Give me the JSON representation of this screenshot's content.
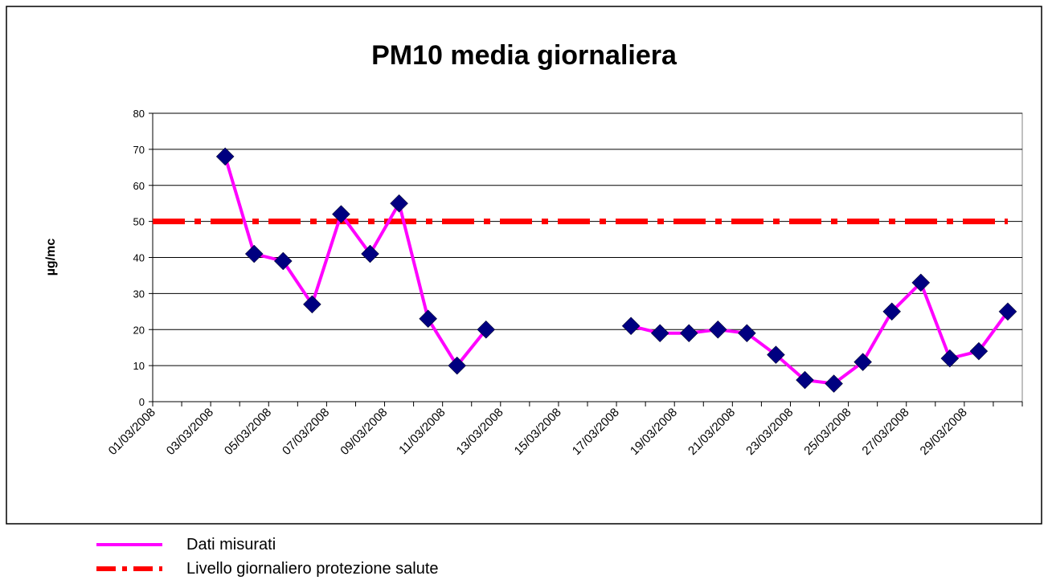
{
  "chart_data": {
    "type": "line",
    "title": "PM10 media giornaliera",
    "y_label": "µg/mc",
    "categories": [
      "01/03/2008",
      null,
      "03/03/2008",
      null,
      "05/03/2008",
      null,
      "07/03/2008",
      null,
      "09/03/2008",
      null,
      "11/03/2008",
      null,
      "13/03/2008",
      null,
      "15/03/2008",
      null,
      "17/03/2008",
      null,
      "19/03/2008",
      null,
      "21/03/2008",
      null,
      "23/03/2008",
      null,
      "25/03/2008",
      null,
      "27/03/2008",
      null,
      "29/03/2008",
      null
    ],
    "series": [
      {
        "name": "Dati misurati",
        "color": "#ff00ff",
        "marker_color": "#000080",
        "values": [
          null,
          null,
          68,
          41,
          39,
          27,
          52,
          41,
          55,
          23,
          10,
          20,
          null,
          null,
          null,
          null,
          21,
          19,
          19,
          20,
          19,
          13,
          6,
          5,
          11,
          25,
          33,
          12,
          14,
          25
        ]
      }
    ],
    "threshold": {
      "name": "Livello giornaliero protezione salute",
      "value": 50,
      "color": "#ff0000"
    },
    "ylim": [
      0,
      80
    ],
    "yticks": [
      0,
      10,
      20,
      30,
      40,
      50,
      60,
      70,
      80
    ],
    "grid": true
  }
}
